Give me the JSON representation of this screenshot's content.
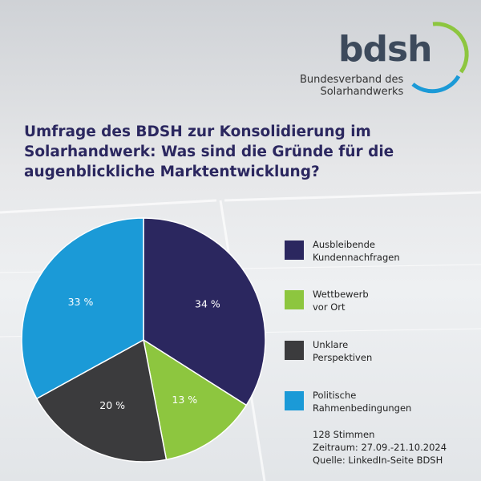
{
  "chart_data": {
    "type": "pie",
    "title": "Umfrage des BDSH zur Konsolidierung im\nSolarhandwerk: Was sind die Gründe für die\naugenblickliche Marktentwicklung?",
    "logo": {
      "name": "bdsh",
      "subtitle": "Bundesverband des\nSolarhandwerks"
    },
    "categories": [
      "Ausbleibende\nKundennachfragen",
      "Wettbewerb\nvor Ort",
      "Unklare\nPerspektiven",
      "Politische\nRahmenbedingungen"
    ],
    "values": [
      34,
      13,
      20,
      33
    ],
    "value_labels": [
      "34 %",
      "13 %",
      "20 %",
      "33 %"
    ],
    "colors": [
      "#2b275f",
      "#8dc63f",
      "#3b3b3d",
      "#1b9ad7"
    ],
    "notes": [
      "128 Stimmen",
      "Zeitraum: 27.09.-21.10.2024",
      "Quelle: LinkedIn-Seite BDSH"
    ]
  }
}
